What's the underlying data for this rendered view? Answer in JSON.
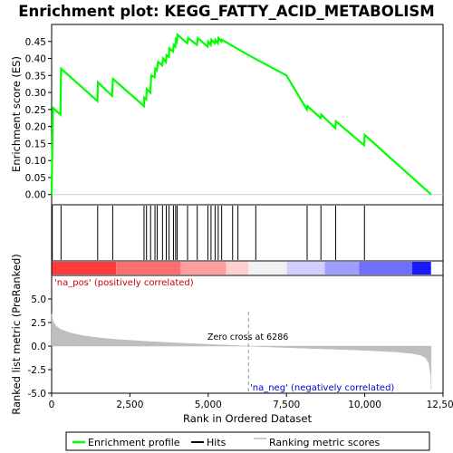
{
  "chart_data": {
    "type": "line",
    "title": "Enrichment plot: KEGG_FATTY_ACID_METABOLISM",
    "top_panel": {
      "ylabel": "Enrichment score (ES)",
      "ylim": [
        -0.03,
        0.5
      ],
      "yticks": [
        "0.00",
        "0.05",
        "0.10",
        "0.15",
        "0.20",
        "0.25",
        "0.30",
        "0.35",
        "0.40",
        "0.45"
      ],
      "ytick_values": [
        0.0,
        0.05,
        0.1,
        0.15,
        0.2,
        0.25,
        0.3,
        0.35,
        0.4,
        0.45
      ],
      "series_color": "#00ff00",
      "es_profile": [
        [
          0,
          0.0
        ],
        [
          40,
          0.255
        ],
        [
          280,
          0.235
        ],
        [
          300,
          0.37
        ],
        [
          1460,
          0.275
        ],
        [
          1480,
          0.33
        ],
        [
          1930,
          0.29
        ],
        [
          1960,
          0.34
        ],
        [
          2950,
          0.26
        ],
        [
          2960,
          0.285
        ],
        [
          3020,
          0.28
        ],
        [
          3040,
          0.31
        ],
        [
          3150,
          0.3
        ],
        [
          3180,
          0.35
        ],
        [
          3290,
          0.345
        ],
        [
          3310,
          0.37
        ],
        [
          3360,
          0.365
        ],
        [
          3400,
          0.39
        ],
        [
          3530,
          0.38
        ],
        [
          3560,
          0.4
        ],
        [
          3650,
          0.39
        ],
        [
          3670,
          0.41
        ],
        [
          3740,
          0.405
        ],
        [
          3760,
          0.43
        ],
        [
          3880,
          0.42
        ],
        [
          3900,
          0.44
        ],
        [
          3950,
          0.435
        ],
        [
          3970,
          0.455
        ],
        [
          4000,
          0.45
        ],
        [
          4020,
          0.47
        ],
        [
          4330,
          0.445
        ],
        [
          4360,
          0.46
        ],
        [
          4640,
          0.44
        ],
        [
          4670,
          0.46
        ],
        [
          4980,
          0.435
        ],
        [
          5000,
          0.45
        ],
        [
          5080,
          0.44
        ],
        [
          5100,
          0.455
        ],
        [
          5210,
          0.445
        ],
        [
          5230,
          0.455
        ],
        [
          5310,
          0.445
        ],
        [
          5330,
          0.46
        ],
        [
          5420,
          0.45
        ],
        [
          5440,
          0.455
        ],
        [
          6286,
          0.41
        ],
        [
          7500,
          0.35
        ],
        [
          8150,
          0.25
        ],
        [
          8170,
          0.26
        ],
        [
          8590,
          0.225
        ],
        [
          8610,
          0.235
        ],
        [
          9060,
          0.195
        ],
        [
          9080,
          0.215
        ],
        [
          9980,
          0.145
        ],
        [
          10000,
          0.175
        ],
        [
          12120,
          0.0
        ]
      ]
    },
    "hits": [
      20,
      300,
      1470,
      1950,
      2950,
      3030,
      3160,
      3300,
      3370,
      3540,
      3660,
      3750,
      3890,
      3960,
      4010,
      4340,
      4650,
      4990,
      5090,
      5220,
      5320,
      5430,
      5780,
      5950,
      6520,
      8160,
      8600,
      9070,
      9990
    ],
    "ranking_bar_colors": [
      "#ff3c3c",
      "#ff6e6e",
      "#ff9f9f",
      "#ffcece",
      "#f0f0f0",
      "#cfcfff",
      "#9f9fff",
      "#6e6eff",
      "#1a1aff"
    ],
    "bottom_panel": {
      "ylabel": "Ranked list metric (PreRanked)",
      "ylim": [
        -5,
        7.5
      ],
      "yticks": [
        "-5.0",
        "-2.5",
        "0.0",
        "2.5",
        "5.0"
      ],
      "ytick_values": [
        -5.0,
        -2.5,
        0.0,
        2.5,
        5.0
      ],
      "metric_color": "#bebebe",
      "metric_profile": [
        [
          0,
          3.4
        ],
        [
          50,
          2.6
        ],
        [
          150,
          2.1
        ],
        [
          300,
          1.75
        ],
        [
          600,
          1.4
        ],
        [
          1000,
          1.1
        ],
        [
          1500,
          0.88
        ],
        [
          2000,
          0.72
        ],
        [
          3000,
          0.5
        ],
        [
          4000,
          0.33
        ],
        [
          5000,
          0.18
        ],
        [
          6286,
          0.0
        ],
        [
          7000,
          -0.1
        ],
        [
          8000,
          -0.22
        ],
        [
          9000,
          -0.33
        ],
        [
          10000,
          -0.45
        ],
        [
          11000,
          -0.62
        ],
        [
          11500,
          -0.78
        ],
        [
          11800,
          -0.98
        ],
        [
          11950,
          -1.25
        ],
        [
          12050,
          -1.8
        ],
        [
          12110,
          -3.2
        ],
        [
          12120,
          -4.6
        ]
      ],
      "pos_label": "'na_pos' (positively correlated)",
      "neg_label": "'na_neg' (negatively correlated)",
      "zero_cross_label": "Zero cross at 6286",
      "zero_cross": 6286
    },
    "xlabel": "Rank in Ordered Dataset",
    "xlim": [
      0,
      12500
    ],
    "xticks": [
      "0",
      "2,500",
      "5,000",
      "7,500",
      "10,000",
      "12,500"
    ],
    "xtick_values": [
      0,
      2500,
      5000,
      7500,
      10000,
      12500
    ],
    "n_genes": 12120,
    "legend": [
      {
        "label": "Enrichment profile",
        "kind": "line",
        "color": "#00ff00"
      },
      {
        "label": "Hits",
        "kind": "line",
        "color": "#000000"
      },
      {
        "label": "Ranking metric scores",
        "kind": "line",
        "color": "#bebebe"
      }
    ]
  }
}
